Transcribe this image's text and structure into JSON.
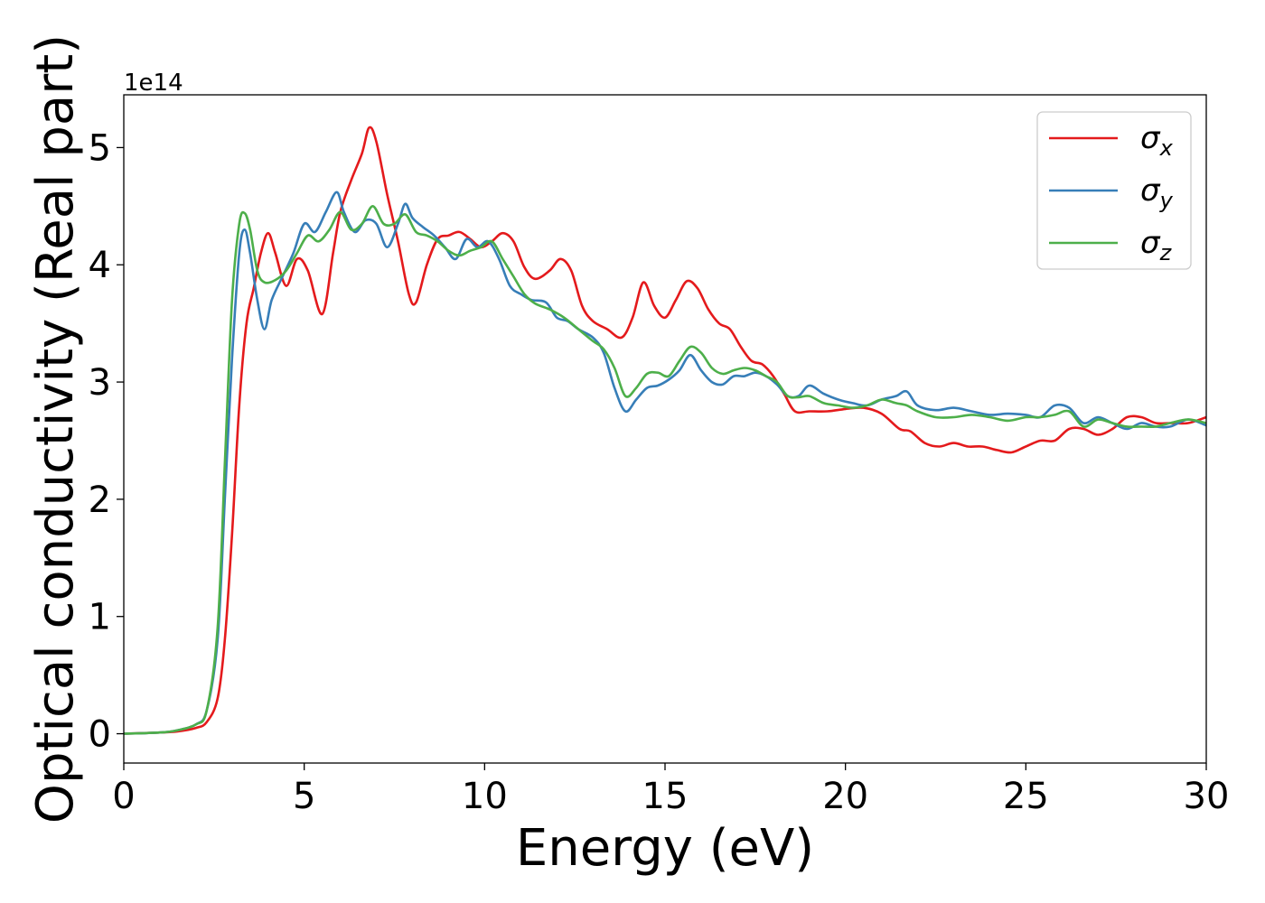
{
  "chart_data": {
    "type": "line",
    "xlabel": "Energy (eV)",
    "ylabel": "Optical conductivity (Real part)",
    "y_offset_label": "1e14",
    "xlim": [
      0,
      30
    ],
    "ylim": [
      -0.25,
      5.45
    ],
    "x_ticks": [
      0,
      5,
      10,
      15,
      20,
      25,
      30
    ],
    "y_ticks": [
      0,
      1,
      2,
      3,
      4,
      5
    ],
    "grid": false,
    "legend_position": "top-right",
    "series": [
      {
        "name": "σx",
        "color": "#e41a1c",
        "x": [
          0,
          1,
          1.5,
          2,
          2.3,
          2.6,
          2.8,
          3.0,
          3.2,
          3.4,
          3.6,
          3.8,
          4.0,
          4.2,
          4.5,
          4.8,
          5.1,
          5.5,
          5.8,
          6.0,
          6.3,
          6.6,
          6.8,
          7.0,
          7.3,
          7.6,
          7.9,
          8.1,
          8.4,
          8.7,
          9.0,
          9.3,
          9.6,
          9.9,
          10.2,
          10.5,
          10.8,
          11.1,
          11.4,
          11.8,
          12.1,
          12.4,
          12.7,
          13.0,
          13.4,
          13.8,
          14.1,
          14.4,
          14.7,
          15.0,
          15.3,
          15.6,
          15.9,
          16.2,
          16.5,
          16.8,
          17.1,
          17.4,
          17.7,
          18.0,
          18.3,
          18.6,
          19.0,
          19.5,
          20.0,
          20.5,
          21.0,
          21.5,
          21.8,
          22.2,
          22.6,
          23.0,
          23.4,
          23.8,
          24.2,
          24.6,
          25.0,
          25.4,
          25.8,
          26.2,
          26.6,
          27.0,
          27.4,
          27.8,
          28.2,
          28.6,
          29.0,
          29.5,
          30.0
        ],
        "values": [
          0.0,
          0.01,
          0.02,
          0.05,
          0.1,
          0.3,
          0.8,
          1.7,
          2.8,
          3.5,
          3.8,
          4.1,
          4.27,
          4.1,
          3.82,
          4.05,
          3.95,
          3.58,
          4.1,
          4.45,
          4.72,
          4.95,
          5.17,
          5.05,
          4.6,
          4.2,
          3.75,
          3.68,
          4.0,
          4.22,
          4.25,
          4.28,
          4.22,
          4.15,
          4.2,
          4.27,
          4.2,
          3.98,
          3.88,
          3.95,
          4.05,
          3.95,
          3.65,
          3.52,
          3.45,
          3.38,
          3.55,
          3.85,
          3.65,
          3.55,
          3.7,
          3.86,
          3.8,
          3.62,
          3.5,
          3.45,
          3.3,
          3.18,
          3.15,
          3.05,
          2.9,
          2.75,
          2.75,
          2.75,
          2.77,
          2.78,
          2.73,
          2.6,
          2.58,
          2.48,
          2.45,
          2.48,
          2.45,
          2.45,
          2.42,
          2.4,
          2.45,
          2.5,
          2.5,
          2.6,
          2.6,
          2.55,
          2.6,
          2.7,
          2.7,
          2.65,
          2.65,
          2.65,
          2.7
        ]
      },
      {
        "name": "σy",
        "color": "#377eb8",
        "x": [
          0,
          1,
          1.5,
          2,
          2.3,
          2.6,
          2.8,
          3.0,
          3.2,
          3.35,
          3.5,
          3.7,
          3.9,
          4.1,
          4.4,
          4.7,
          5.0,
          5.3,
          5.6,
          5.9,
          6.1,
          6.4,
          6.7,
          7.0,
          7.3,
          7.6,
          7.8,
          8.0,
          8.3,
          8.6,
          8.9,
          9.2,
          9.5,
          9.8,
          10.1,
          10.4,
          10.7,
          11.0,
          11.3,
          11.7,
          12.0,
          12.3,
          12.6,
          13.0,
          13.3,
          13.6,
          13.9,
          14.2,
          14.5,
          14.8,
          15.1,
          15.4,
          15.7,
          16.0,
          16.3,
          16.6,
          16.9,
          17.2,
          17.5,
          17.8,
          18.1,
          18.4,
          18.7,
          19.0,
          19.4,
          19.8,
          20.2,
          20.6,
          21.0,
          21.4,
          21.7,
          22.0,
          22.5,
          23.0,
          23.5,
          24.0,
          24.5,
          25.0,
          25.4,
          25.8,
          26.2,
          26.6,
          27.0,
          27.4,
          27.8,
          28.2,
          28.6,
          29.0,
          29.5,
          30.0
        ],
        "values": [
          0.0,
          0.01,
          0.03,
          0.08,
          0.2,
          0.8,
          2.0,
          3.2,
          4.1,
          4.3,
          4.1,
          3.7,
          3.45,
          3.7,
          3.9,
          4.1,
          4.35,
          4.28,
          4.45,
          4.62,
          4.45,
          4.28,
          4.38,
          4.35,
          4.15,
          4.35,
          4.52,
          4.4,
          4.32,
          4.25,
          4.15,
          4.05,
          4.22,
          4.15,
          4.2,
          4.05,
          3.82,
          3.75,
          3.7,
          3.68,
          3.55,
          3.52,
          3.45,
          3.38,
          3.25,
          2.95,
          2.75,
          2.85,
          2.95,
          2.97,
          3.02,
          3.1,
          3.23,
          3.1,
          3.0,
          2.98,
          3.05,
          3.05,
          3.08,
          3.05,
          2.98,
          2.88,
          2.88,
          2.97,
          2.9,
          2.85,
          2.82,
          2.8,
          2.85,
          2.88,
          2.92,
          2.8,
          2.76,
          2.78,
          2.75,
          2.72,
          2.73,
          2.72,
          2.7,
          2.8,
          2.78,
          2.65,
          2.7,
          2.65,
          2.6,
          2.65,
          2.62,
          2.62,
          2.68,
          2.63
        ]
      },
      {
        "name": "σz",
        "color": "#4daf4a",
        "x": [
          0,
          1,
          1.5,
          2,
          2.3,
          2.6,
          2.8,
          3.0,
          3.2,
          3.35,
          3.5,
          3.7,
          3.9,
          4.2,
          4.5,
          4.8,
          5.1,
          5.4,
          5.7,
          6.0,
          6.3,
          6.6,
          6.9,
          7.2,
          7.5,
          7.8,
          8.1,
          8.4,
          8.7,
          9.0,
          9.3,
          9.6,
          9.9,
          10.2,
          10.5,
          10.8,
          11.1,
          11.4,
          11.8,
          12.2,
          12.6,
          13.0,
          13.3,
          13.6,
          13.9,
          14.2,
          14.5,
          14.8,
          15.1,
          15.4,
          15.7,
          16.0,
          16.3,
          16.6,
          16.9,
          17.2,
          17.5,
          17.8,
          18.1,
          18.4,
          18.7,
          19.0,
          19.4,
          19.8,
          20.2,
          20.6,
          21.0,
          21.4,
          21.7,
          22.0,
          22.5,
          23.0,
          23.5,
          24.0,
          24.5,
          25.0,
          25.4,
          25.8,
          26.2,
          26.6,
          27.0,
          27.4,
          27.8,
          28.2,
          28.6,
          29.0,
          29.5,
          30.0
        ],
        "values": [
          0.0,
          0.01,
          0.03,
          0.08,
          0.2,
          0.9,
          2.3,
          3.7,
          4.35,
          4.44,
          4.3,
          3.95,
          3.85,
          3.87,
          3.95,
          4.1,
          4.25,
          4.2,
          4.3,
          4.45,
          4.3,
          4.35,
          4.5,
          4.35,
          4.35,
          4.43,
          4.28,
          4.25,
          4.2,
          4.12,
          4.08,
          4.12,
          4.15,
          4.2,
          4.05,
          3.9,
          3.75,
          3.67,
          3.62,
          3.55,
          3.45,
          3.35,
          3.28,
          3.12,
          2.88,
          2.95,
          3.07,
          3.08,
          3.05,
          3.18,
          3.3,
          3.25,
          3.12,
          3.07,
          3.1,
          3.12,
          3.1,
          3.05,
          3.0,
          2.88,
          2.87,
          2.88,
          2.82,
          2.8,
          2.78,
          2.8,
          2.85,
          2.82,
          2.8,
          2.75,
          2.7,
          2.7,
          2.72,
          2.7,
          2.67,
          2.7,
          2.7,
          2.72,
          2.75,
          2.62,
          2.68,
          2.65,
          2.62,
          2.62,
          2.62,
          2.65,
          2.68,
          2.65
        ]
      }
    ]
  }
}
